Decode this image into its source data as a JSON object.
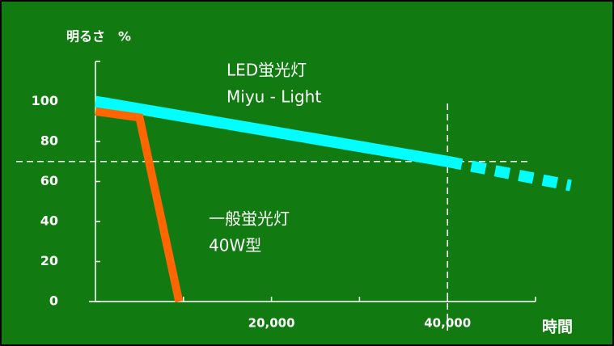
{
  "chart_data": {
    "type": "line",
    "title": "明るさ　%",
    "x_label": "時間",
    "xlim": [
      0,
      50000
    ],
    "xticks": [
      {
        "value": 20000,
        "label": "20,000"
      },
      {
        "value": 40000,
        "label": "40,000"
      }
    ],
    "minor_xticks": [
      10000,
      30000,
      50000
    ],
    "ylim": [
      0,
      120
    ],
    "yticks": [
      0,
      20,
      40,
      60,
      80,
      100
    ],
    "hline": 70,
    "vline": 40000,
    "series": [
      {
        "name": "LED蛍光灯",
        "note": "Miyu - Light",
        "color": "#00ffff",
        "width": 14,
        "x": [
          0,
          40000
        ],
        "values": [
          100,
          70
        ],
        "projection": {
          "x": [
            40000,
            54000
          ],
          "values": [
            70,
            58
          ]
        }
      },
      {
        "name": "一般蛍光灯",
        "note": "40W型",
        "color": "#ff6600",
        "width": 10,
        "x": [
          0,
          5000,
          9500
        ],
        "values": [
          95,
          92,
          0
        ]
      }
    ]
  }
}
